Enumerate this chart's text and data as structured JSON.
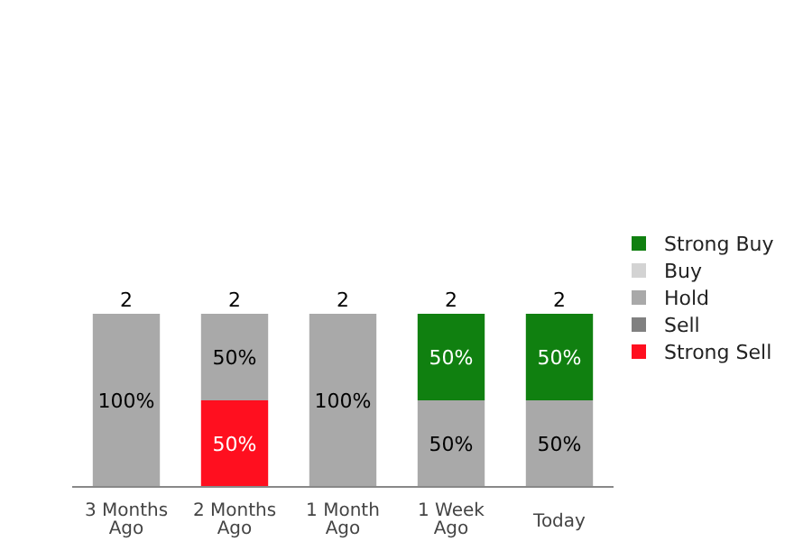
{
  "chart_data": {
    "type": "bar",
    "stacked": true,
    "categories": [
      "3 Months Ago",
      "2 Months Ago",
      "1 Month Ago",
      "1 Week Ago",
      "Today"
    ],
    "series": [
      {
        "name": "Strong Sell",
        "color": "#ff0f1f",
        "values": [
          null,
          50,
          null,
          null,
          null
        ],
        "value_labels": [
          null,
          "50%",
          null,
          null,
          null
        ]
      },
      {
        "name": "Sell",
        "color": "#808080",
        "values": [
          null,
          null,
          null,
          null,
          null
        ]
      },
      {
        "name": "Hold",
        "color": "#a9a9a9",
        "values": [
          100,
          50,
          100,
          50,
          50
        ],
        "value_labels": [
          "100%",
          "50%",
          "100%",
          "50%",
          "50%"
        ]
      },
      {
        "name": "Buy",
        "color": "#d3d3d3",
        "values": [
          null,
          null,
          null,
          null,
          null
        ]
      },
      {
        "name": "Strong Buy",
        "color": "#108010",
        "values": [
          null,
          null,
          null,
          50,
          50
        ],
        "value_labels": [
          null,
          null,
          null,
          "50%",
          "50%"
        ]
      }
    ],
    "annotations": [
      {
        "text": "2",
        "x": "3 Months Ago",
        "y": 100
      },
      {
        "text": "2",
        "x": "2 Months Ago",
        "y": 100
      },
      {
        "text": "2",
        "x": "1 Month Ago",
        "y": 100
      },
      {
        "text": "2",
        "x": "1 Week Ago",
        "y": 100
      },
      {
        "text": "2",
        "x": "Today",
        "y": 100
      }
    ],
    "legend": "right"
  }
}
